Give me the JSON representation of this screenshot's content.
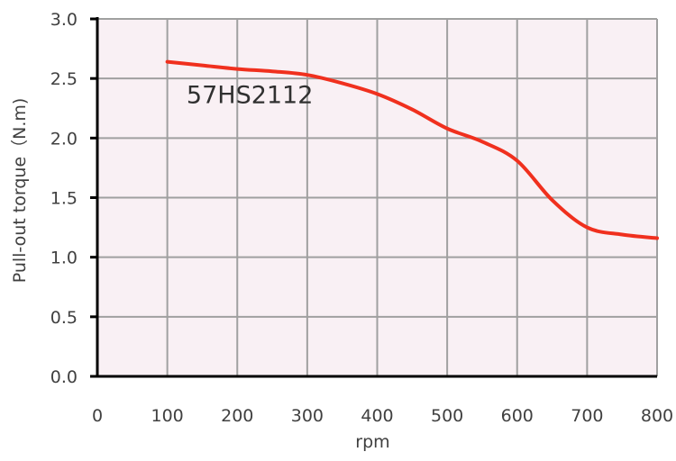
{
  "chart_data": {
    "type": "line",
    "title": "",
    "xlabel": "rpm",
    "ylabel": "Pull-out torque（N.m)",
    "xlim": [
      0,
      800
    ],
    "ylim": [
      0,
      3.0
    ],
    "x_ticks": [
      "0",
      "100",
      "200",
      "300",
      "400",
      "500",
      "600",
      "700",
      "800"
    ],
    "y_ticks": [
      "0.0",
      "0.5",
      "1.0",
      "1.5",
      "2.0",
      "2.5",
      "3.0"
    ],
    "grid": true,
    "background": "#f9f0f4",
    "grid_color": "#a0a0a0",
    "series": [
      {
        "name": "57HS2112",
        "color": "#f0301e",
        "x": [
          100,
          150,
          200,
          250,
          300,
          350,
          400,
          450,
          500,
          550,
          600,
          650,
          700,
          750,
          800
        ],
        "y": [
          2.64,
          2.61,
          2.58,
          2.56,
          2.53,
          2.46,
          2.37,
          2.24,
          2.08,
          1.97,
          1.81,
          1.48,
          1.25,
          1.19,
          1.16
        ]
      }
    ],
    "annotations": [
      {
        "text": "57HS2112",
        "x": 130,
        "y": 2.36
      }
    ]
  }
}
